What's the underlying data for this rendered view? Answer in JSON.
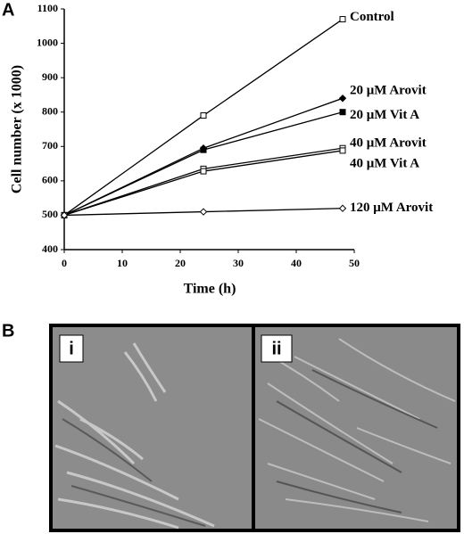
{
  "chart_data": {
    "type": "line",
    "panel_label": "A",
    "x_label": "Time (h)",
    "y_label": "Cell number (x 1000)",
    "xlim": [
      0,
      50
    ],
    "xticks": [
      0,
      10,
      20,
      30,
      40,
      50
    ],
    "ylim": [
      400,
      1100
    ],
    "yticks": [
      400,
      500,
      600,
      700,
      800,
      900,
      1000,
      1100
    ],
    "x": [
      0,
      24,
      48
    ],
    "series": [
      {
        "name": "Control",
        "color": "#000000",
        "marker": "open-square",
        "values": [
          500,
          790,
          1070
        ]
      },
      {
        "name": "20 μM Arovit",
        "color": "#000000",
        "marker": "filled-diamond",
        "values": [
          500,
          695,
          840
        ]
      },
      {
        "name": "20 μM Vit  A",
        "color": "#000000",
        "marker": "filled-square",
        "values": [
          500,
          690,
          800
        ]
      },
      {
        "name": "40 μM Arovit",
        "color": "#000000",
        "marker": "open-square",
        "values": [
          500,
          635,
          695
        ]
      },
      {
        "name": "40 μM Vit  A",
        "color": "#000000",
        "marker": "open-square",
        "values": [
          500,
          628,
          688
        ]
      },
      {
        "name": "120 μM Arovit",
        "color": "#000000",
        "marker": "open-diamond",
        "values": [
          500,
          510,
          520
        ]
      }
    ]
  },
  "images": {
    "panel_label": "B",
    "labels": [
      "i",
      "ii"
    ]
  }
}
